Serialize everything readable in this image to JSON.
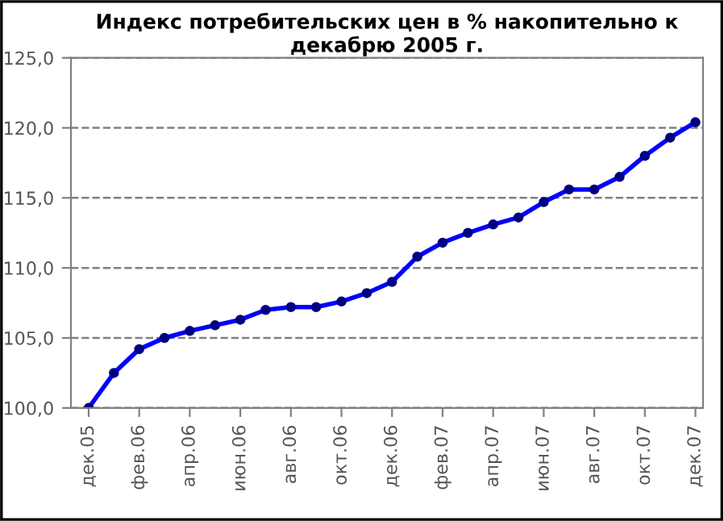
{
  "chart_data": {
    "type": "line",
    "title": "Индекс потребительских цен в % накопительно к декабрю 2005 г.",
    "categories": [
      "дек.05",
      null,
      "фев.06",
      null,
      "апр.06",
      null,
      "июн.06",
      null,
      "авг.06",
      null,
      "окт.06",
      null,
      "дек.06",
      null,
      "фев.07",
      null,
      "апр.07",
      null,
      "июн.07",
      null,
      "авг.07",
      null,
      "окт.07",
      null,
      "дек.07"
    ],
    "series": [
      {
        "color": "#0000ff",
        "values": [
          100.0,
          102.5,
          104.2,
          105.0,
          105.5,
          105.9,
          106.3,
          107.0,
          107.2,
          107.2,
          107.6,
          108.2,
          109.0,
          110.8,
          111.8,
          112.5,
          113.1,
          113.6,
          114.7,
          115.6,
          115.6,
          116.5,
          118.0,
          119.3,
          120.4
        ]
      }
    ],
    "ylim": [
      100,
      125
    ],
    "yticks": [
      {
        "value": 100,
        "label": "100,0"
      },
      {
        "value": 105,
        "label": "105,0"
      },
      {
        "value": 110,
        "label": "110,0"
      },
      {
        "value": 115,
        "label": "115,0"
      },
      {
        "value": 120,
        "label": "120,0"
      },
      {
        "value": 125,
        "label": "125,0"
      }
    ],
    "grid": "y",
    "marker": "circle",
    "line_style": "solid"
  }
}
